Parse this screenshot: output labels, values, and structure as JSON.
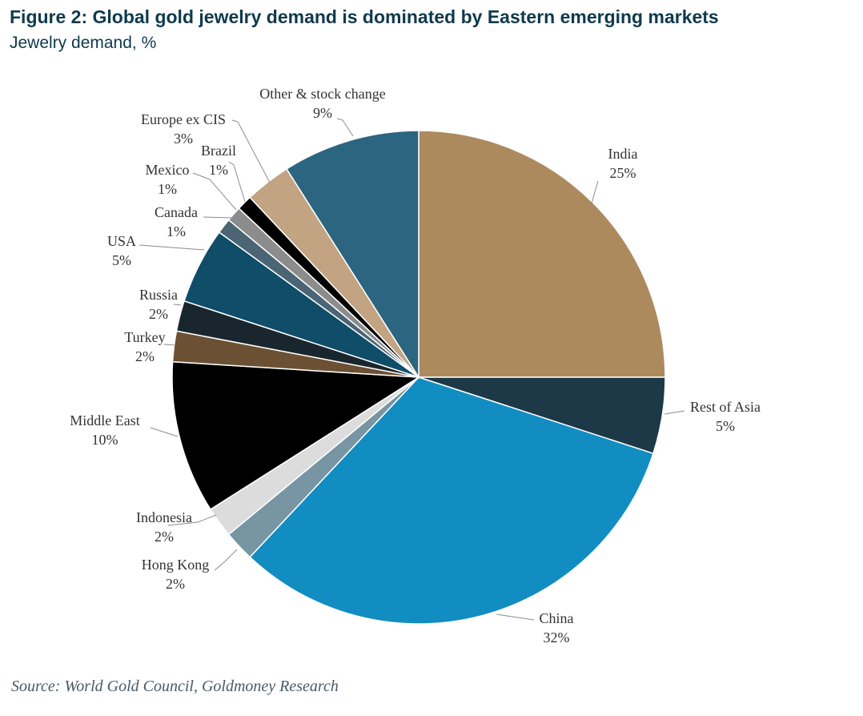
{
  "figure": {
    "title": "Figure 2: Global gold jewelry demand is dominated by Eastern emerging markets",
    "subtitle": "Jewelry demand, %",
    "source": "Source: World Gold Council, Goldmoney Research"
  },
  "chart_data": {
    "type": "pie",
    "title": "Figure 2: Global gold jewelry demand is dominated by Eastern emerging markets",
    "subtitle": "Jewelry demand, %",
    "unit": "%",
    "start_angle_deg": 0,
    "direction": "clockwise",
    "slices": [
      {
        "label": "India",
        "value": 25,
        "value_label": "25%",
        "color": "#ad8a5e"
      },
      {
        "label": "Rest of Asia",
        "value": 5,
        "value_label": "5%",
        "color": "#1d3847"
      },
      {
        "label": "China",
        "value": 32,
        "value_label": "32%",
        "color": "#118dc1"
      },
      {
        "label": "Hong Kong",
        "value": 2,
        "value_label": "2%",
        "color": "#7795a2"
      },
      {
        "label": "Indonesia",
        "value": 2,
        "value_label": "2%",
        "color": "#dcdcdc"
      },
      {
        "label": "Middle East",
        "value": 10,
        "value_label": "10%",
        "color": "#000000"
      },
      {
        "label": "Turkey",
        "value": 2,
        "value_label": "2%",
        "color": "#6b5033"
      },
      {
        "label": "Russia",
        "value": 2,
        "value_label": "2%",
        "color": "#1a262d"
      },
      {
        "label": "USA",
        "value": 5,
        "value_label": "5%",
        "color": "#0f4d69"
      },
      {
        "label": "Canada",
        "value": 1,
        "value_label": "1%",
        "color": "#4b6575"
      },
      {
        "label": "Mexico",
        "value": 1,
        "value_label": "1%",
        "color": "#8c8c8c"
      },
      {
        "label": "Brazil",
        "value": 1,
        "value_label": "1%",
        "color": "#000000"
      },
      {
        "label": "Europe ex CIS",
        "value": 3,
        "value_label": "3%",
        "color": "#c2a382"
      },
      {
        "label": "Other & stock change",
        "value": 9,
        "value_label": "9%",
        "color": "#2c6580"
      }
    ]
  }
}
